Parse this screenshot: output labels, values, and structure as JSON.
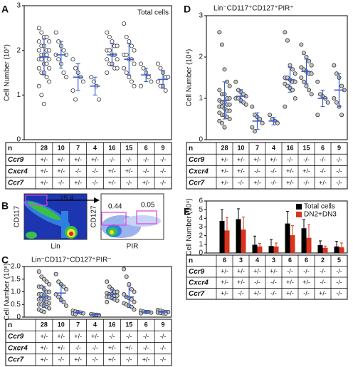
{
  "chart_data": [
    {
      "type": "dot",
      "label": "A",
      "annotation": "Total cells",
      "y_label": "Cell Number (10⁷)",
      "ylim": [
        0,
        3
      ],
      "yticks": [
        0,
        1,
        2,
        3
      ],
      "point_color": "#ffffff",
      "mean_color": "#3a5fcd",
      "groups": [
        {
          "values": [
            2.5,
            2.4,
            2.3,
            2.3,
            2.2,
            2.2,
            2.1,
            2.1,
            2.0,
            2.0,
            2.0,
            1.9,
            1.9,
            1.9,
            1.8,
            1.8,
            1.8,
            1.7,
            1.7,
            1.6,
            1.6,
            1.5,
            1.5,
            1.4,
            1.3,
            1.2,
            1.0,
            0.8
          ],
          "mean": 1.85,
          "sd": 0.4
        },
        {
          "values": [
            2.4,
            2.2,
            2.1,
            2.0,
            1.9,
            1.9,
            1.8,
            1.7,
            1.5,
            1.4
          ],
          "mean": 1.9,
          "sd": 0.3
        },
        {
          "values": [
            1.8,
            1.6,
            1.5,
            1.4,
            1.3,
            1.1,
            0.9
          ],
          "mean": 1.4,
          "sd": 0.3
        },
        {
          "values": [
            1.4,
            1.3,
            1.2,
            0.9
          ],
          "mean": 1.2,
          "sd": 0.2
        },
        {
          "values": [
            2.4,
            2.3,
            2.2,
            2.1,
            2.1,
            2.0,
            2.0,
            1.9,
            1.9,
            1.8,
            1.8,
            1.7,
            1.7,
            1.6,
            1.6,
            1.5
          ],
          "mean": 1.9,
          "sd": 0.25
        },
        {
          "values": [
            2.6,
            2.3,
            2.2,
            2.1,
            2.0,
            1.9,
            1.9,
            1.8,
            1.8,
            1.7,
            1.6,
            1.5,
            1.4,
            1.3,
            1.2
          ],
          "mean": 1.8,
          "sd": 0.35
        },
        {
          "values": [
            1.7,
            1.6,
            1.5,
            1.4,
            1.3,
            1.2
          ],
          "mean": 1.45,
          "sd": 0.15
        },
        {
          "values": [
            1.7,
            1.6,
            1.5,
            1.4,
            1.4,
            1.3,
            1.2,
            1.2,
            1.1
          ],
          "mean": 1.35,
          "sd": 0.2
        }
      ],
      "table": {
        "rows": [
          {
            "name": "n",
            "cells": [
              28,
              10,
              7,
              4,
              16,
              15,
              6,
              9
            ]
          },
          {
            "name": "Ccr9",
            "cells": [
              "+/-",
              "+/-",
              "+/-",
              "+/-",
              "-/-",
              "-/-",
              "-/-",
              "-/-"
            ]
          },
          {
            "name": "Cxcr4",
            "cells": [
              "+/-",
              "+/-",
              "-/-",
              "-/-",
              "+/-",
              "+/-",
              "-/-",
              "-/-"
            ]
          },
          {
            "name": "Ccr7",
            "cells": [
              "+/-",
              "-/-",
              "+/-",
              "-/-",
              "+/-",
              "-/-",
              "+/-",
              "-/-"
            ]
          }
        ]
      }
    },
    {
      "type": "dot",
      "label": "C",
      "title": "Lin⁻CD117⁺CD127⁺PIR⁻",
      "y_label": "Cell Number (10⁵)",
      "ylim": [
        0,
        2
      ],
      "yticks": [
        0,
        0.5,
        {
          "value": 1,
          "label": "1.0"
        },
        1.5,
        {
          "value": 2,
          "label": "2.0"
        }
      ],
      "point_color": "#c8c8c8",
      "mean_color": "#3a5fcd",
      "groups": [
        {
          "values": [
            1.8,
            1.6,
            1.5,
            1.4,
            1.3,
            1.2,
            1.2,
            1.1,
            1.0,
            1.0,
            0.9,
            0.9,
            0.85,
            0.8,
            0.75,
            0.7,
            0.7,
            0.65,
            0.6,
            0.55,
            0.5,
            0.5,
            0.45,
            0.4,
            0.35,
            0.3,
            0.25,
            0.2
          ],
          "mean": 0.8,
          "sd": 0.42
        },
        {
          "values": [
            1.7,
            1.4,
            1.3,
            1.2,
            1.1,
            0.9,
            0.8,
            0.7,
            0.6,
            0.45
          ],
          "mean": 0.95,
          "sd": 0.35
        },
        {
          "values": [
            0.25,
            0.22,
            0.2,
            0.18,
            0.15,
            0.14,
            0.12
          ],
          "mean": 0.18,
          "sd": 0.05
        },
        {
          "values": [
            0.12,
            0.1,
            0.09,
            0.08
          ],
          "mean": 0.1,
          "sd": 0.02
        },
        {
          "values": [
            1.4,
            1.2,
            1.1,
            1.0,
            1.0,
            0.95,
            0.9,
            0.9,
            0.85,
            0.85,
            0.8,
            0.8,
            0.75,
            0.7,
            0.65,
            0.6
          ],
          "mean": 0.9,
          "sd": 0.2
        },
        {
          "values": [
            1.9,
            1.6,
            1.3,
            1.1,
            1.0,
            0.9,
            0.8,
            0.75,
            0.7,
            0.6,
            0.55,
            0.5,
            0.45,
            0.4,
            0.3
          ],
          "mean": 0.8,
          "sd": 0.42
        },
        {
          "values": [
            0.25,
            0.22,
            0.2,
            0.2,
            0.18,
            0.15
          ],
          "mean": 0.2,
          "sd": 0.04
        },
        {
          "values": [
            0.28,
            0.25,
            0.22,
            0.2,
            0.2,
            0.18,
            0.17,
            0.15,
            0.14
          ],
          "mean": 0.2,
          "sd": 0.04
        }
      ],
      "table": {
        "rows": [
          {
            "name": "n",
            "cells": [
              28,
              10,
              7,
              4,
              16,
              15,
              6,
              9
            ]
          },
          {
            "name": "Ccr9",
            "cells": [
              "+/-",
              "+/-",
              "+/-",
              "+/-",
              "-/-",
              "-/-",
              "-/-",
              "-/-"
            ]
          },
          {
            "name": "Cxcr4",
            "cells": [
              "+/-",
              "+/-",
              "-/-",
              "-/-",
              "+/-",
              "+/-",
              "-/-",
              "-/-"
            ]
          },
          {
            "name": "Ccr7",
            "cells": [
              "+/-",
              "-/-",
              "+/-",
              "-/-",
              "+/-",
              "-/-",
              "+/-",
              "-/-"
            ]
          }
        ]
      }
    },
    {
      "type": "dot",
      "label": "D",
      "title": "Lin⁻CD117⁺CD127⁺PIR⁺",
      "y_label": "Cell Number (10⁴)",
      "ylim": [
        0,
        3
      ],
      "yticks": [
        0,
        1,
        2,
        3
      ],
      "point_color": "#c8c8c8",
      "mean_color": "#3a5fcd",
      "groups": [
        {
          "values": [
            2.6,
            2.3,
            1.7,
            1.4,
            1.3,
            1.2,
            1.1,
            1.1,
            1.0,
            1.0,
            0.95,
            0.9,
            0.9,
            0.85,
            0.85,
            0.8,
            0.8,
            0.75,
            0.7,
            0.7,
            0.65,
            0.6,
            0.6,
            0.55,
            0.5,
            0.45,
            0.4,
            0.3
          ],
          "mean": 0.95,
          "sd": 0.45
        },
        {
          "values": [
            1.4,
            1.2,
            1.15,
            1.1,
            1.05,
            1.0,
            1.0,
            0.95,
            0.9,
            0.85
          ],
          "mean": 1.05,
          "sd": 0.16
        },
        {
          "values": [
            0.8,
            0.6,
            0.55,
            0.5,
            0.4,
            0.3,
            0.2
          ],
          "mean": 0.45,
          "sd": 0.2
        },
        {
          "values": [
            0.6,
            0.5,
            0.45,
            0.4
          ],
          "mean": 0.45,
          "sd": 0.09
        },
        {
          "values": [
            2.6,
            2.4,
            1.8,
            1.7,
            1.6,
            1.5,
            1.5,
            1.45,
            1.4,
            1.4,
            1.35,
            1.3,
            1.25,
            1.2,
            1.0,
            0.8
          ],
          "mean": 1.45,
          "sd": 0.3
        },
        {
          "values": [
            2.3,
            2.1,
            2.0,
            1.9,
            1.8,
            1.75,
            1.7,
            1.65,
            1.6,
            1.6,
            1.5,
            1.4,
            1.3,
            1.2,
            1.1
          ],
          "mean": 1.65,
          "sd": 0.3
        },
        {
          "values": [
            1.4,
            1.1,
            1.05,
            1.0,
            0.9,
            0.6
          ],
          "mean": 1.0,
          "sd": 0.2
        },
        {
          "values": [
            1.8,
            1.6,
            1.5,
            1.3,
            1.2,
            1.0,
            0.9,
            0.8,
            0.6
          ],
          "mean": 1.2,
          "sd": 0.4
        }
      ],
      "table": {
        "rows": [
          {
            "name": "n",
            "cells": [
              28,
              10,
              7,
              4,
              16,
              15,
              6,
              9
            ]
          },
          {
            "name": "Ccr9",
            "cells": [
              "+/-",
              "+/-",
              "+/-",
              "+/-",
              "-/-",
              "-/-",
              "-/-",
              "-/-"
            ]
          },
          {
            "name": "Cxcr4",
            "cells": [
              "+/-",
              "+/-",
              "-/-",
              "-/-",
              "+/-",
              "+/-",
              "-/-",
              "-/-"
            ]
          },
          {
            "name": "Ccr7",
            "cells": [
              "+/-",
              "-/-",
              "+/-",
              "-/-",
              "+/-",
              "-/-",
              "+/-",
              "-/-"
            ]
          }
        ]
      }
    },
    {
      "type": "bar",
      "label": "E",
      "y_label": "Cell Number (10⁴)",
      "ylim": [
        0,
        6
      ],
      "yticks": [
        0,
        1,
        2,
        3,
        4,
        5,
        6
      ],
      "legend": "top-right",
      "series": [
        {
          "name": "Total cells",
          "color": "#000000",
          "values": [
            3.7,
            3.9,
            0.95,
            0.8,
            3.4,
            2.85,
            0.9,
            0.75
          ],
          "errors": [
            1.3,
            1.2,
            1.0,
            0.75,
            1.4,
            1.0,
            0.5,
            0.6
          ]
        },
        {
          "name": "DN2+DN3",
          "color": "#d9321f",
          "values": [
            2.6,
            2.7,
            0.75,
            0.75,
            2.05,
            1.75,
            0.6,
            0.65
          ],
          "errors": [
            1.5,
            1.45,
            0.35,
            0.4,
            1.1,
            1.5,
            0.2,
            0.5
          ]
        }
      ],
      "table": {
        "rows": [
          {
            "name": "n",
            "cells": [
              6,
              3,
              4,
              3,
              6,
              6,
              2,
              5
            ]
          },
          {
            "name": "Ccr9",
            "cells": [
              "+/-",
              "+/-",
              "+/-",
              "+/-",
              "-/-",
              "-/-",
              "-/-",
              "-/-"
            ]
          },
          {
            "name": "Cxcr4",
            "cells": [
              "+/-",
              "+/-",
              "-/-",
              "-/-",
              "+/-",
              "+/-",
              "-/-",
              "-/-"
            ]
          },
          {
            "name": "Ccr7",
            "cells": [
              "+/-",
              "-/-",
              "+/-",
              "-/-",
              "+/-",
              "-/-",
              "+/-",
              "-/-"
            ]
          }
        ]
      }
    }
  ],
  "flow_panel": {
    "label": "B",
    "left": {
      "y_label": "CD117",
      "x_label": "Lin",
      "gate": 25.4
    },
    "right": {
      "y_label": "CD127",
      "x_label": "PIR",
      "gates": [
        0.44,
        0.05
      ]
    }
  }
}
